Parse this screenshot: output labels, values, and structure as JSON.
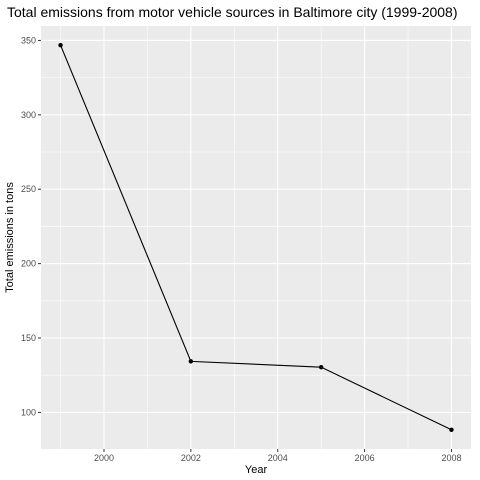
{
  "chart_data": {
    "type": "line",
    "title": "Total emissions from motor vehicle sources in Baltimore city (1999-2008)",
    "xlabel": "Year",
    "ylabel": "Total emissions in tons",
    "x": [
      1999,
      2002,
      2005,
      2008
    ],
    "series": [
      {
        "values": [
          346.8,
          134.3,
          130.4,
          88.3
        ]
      }
    ],
    "xlim": [
      1998.55,
      2008.45
    ],
    "ylim": [
      75.4,
      359.7
    ],
    "x_ticks": [
      2000,
      2002,
      2004,
      2006,
      2008
    ],
    "x_tick_labels": [
      "2000",
      "2002",
      "2004",
      "2006",
      "2008"
    ],
    "y_ticks": [
      100,
      150,
      200,
      250,
      300,
      350
    ],
    "y_tick_labels": [
      "100",
      "150",
      "200",
      "250",
      "300",
      "350"
    ],
    "grid": true,
    "legend": "none",
    "colors": {
      "panel_background": "#ebebeb",
      "major_grid": "#ffffff",
      "line": "#000000",
      "point": "#000000",
      "tick_label": "#4d4d4d",
      "axis_tick": "#333333"
    }
  }
}
